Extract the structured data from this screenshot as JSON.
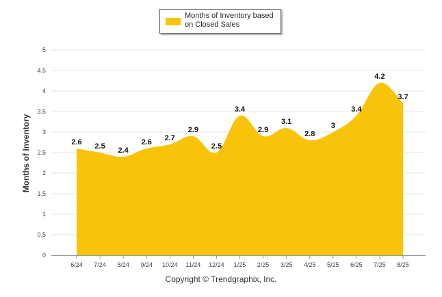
{
  "chart_data": {
    "type": "area",
    "categories": [
      "6/24",
      "7/24",
      "8/24",
      "9/24",
      "10/24",
      "11/24",
      "12/24",
      "1/25",
      "2/25",
      "3/25",
      "4/25",
      "5/25",
      "6/25",
      "7/25",
      "8/25"
    ],
    "series": [
      {
        "name": "Months of Inventory based on Closed Sales",
        "values": [
          2.6,
          2.5,
          2.4,
          2.6,
          2.7,
          2.9,
          2.5,
          3.4,
          2.9,
          3.1,
          2.8,
          3,
          3.4,
          4.2,
          3.7
        ]
      }
    ],
    "ylabel": "Months of Inventory",
    "ylim": [
      0,
      5
    ],
    "yticks": [
      "0",
      "0.5",
      "1",
      "1.5",
      "2",
      "2.5",
      "3",
      "3.5",
      "4",
      "4.5",
      "5"
    ],
    "grid": true,
    "legend": "top-center",
    "color": "#f7c40a"
  },
  "copyright": "Copyright © Trendgraphix, Inc."
}
